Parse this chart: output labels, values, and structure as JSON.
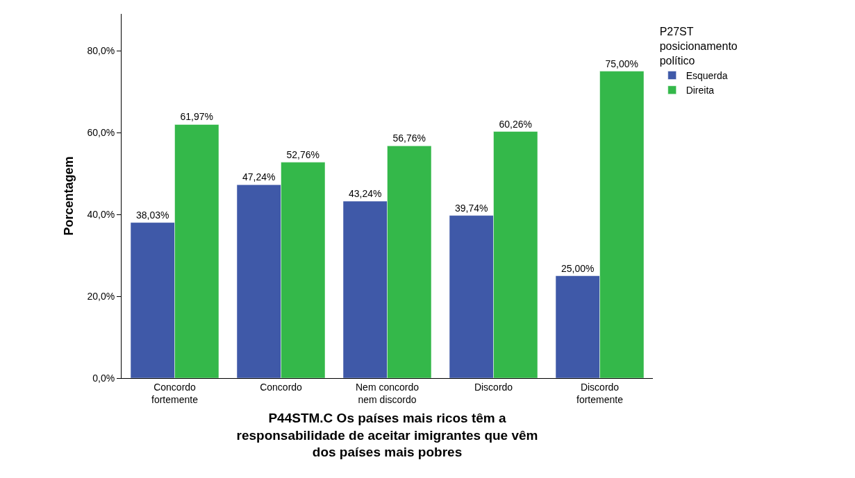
{
  "chart_data": {
    "type": "bar",
    "xlabel": "P44STM.C Os países mais ricos têm a\nresponsabilidade de aceitar imigrantes que vêm\ndos países mais pobres",
    "ylabel": "Porcentagem",
    "legend_title": "P27ST\nposicionamento\npolítico",
    "categories": [
      "Concordo\nfortemente",
      "Concordo",
      "Nem concordo\nnem discordo",
      "Discordo",
      "Discordo\nfortemente"
    ],
    "series": [
      {
        "name": "Esquerda",
        "color": "#3f59a8",
        "values": [
          38.03,
          47.24,
          43.24,
          39.74,
          25.0
        ],
        "value_labels": [
          "38,03%",
          "47,24%",
          "43,24%",
          "39,74%",
          "25,00%"
        ]
      },
      {
        "name": "Direita",
        "color": "#34b84a",
        "values": [
          61.97,
          52.76,
          56.76,
          60.26,
          75.0
        ],
        "value_labels": [
          "61,97%",
          "52,76%",
          "56,76%",
          "60,26%",
          "75,00%"
        ]
      }
    ],
    "ylim": [
      0,
      89
    ],
    "yticks": [
      {
        "value": 0,
        "label": "0,0%"
      },
      {
        "value": 20,
        "label": "20,0%"
      },
      {
        "value": 40,
        "label": "40,0%"
      },
      {
        "value": 60,
        "label": "60,0%"
      },
      {
        "value": 80,
        "label": "80,0%"
      }
    ],
    "legend": "top right"
  }
}
